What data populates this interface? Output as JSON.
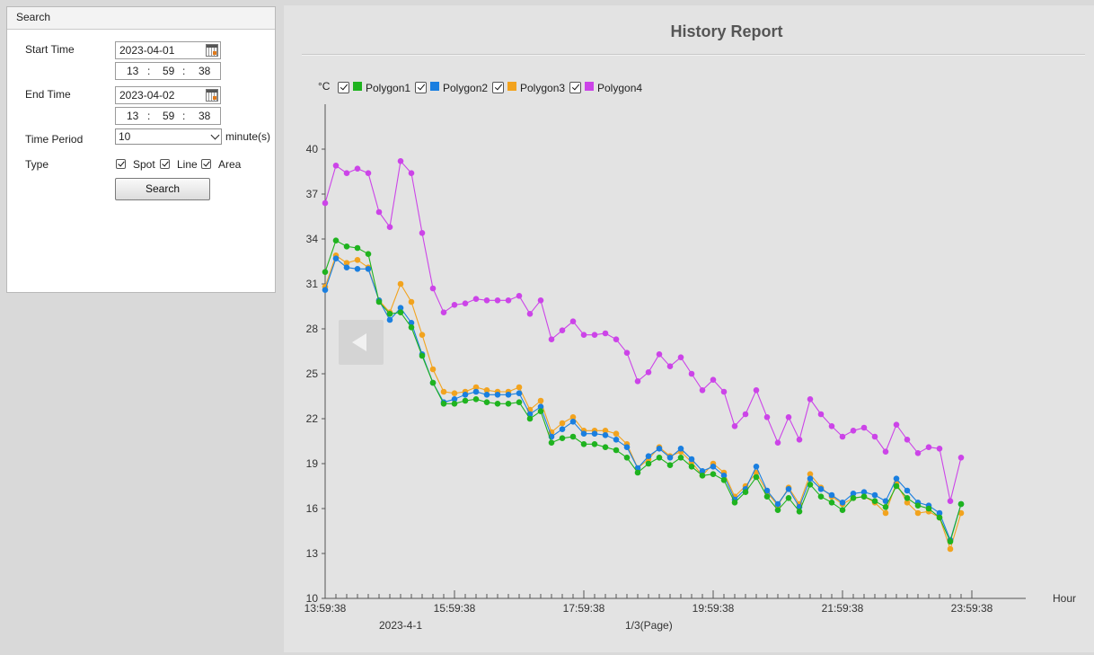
{
  "search": {
    "header": "Search",
    "start_time_label": "Start Time",
    "start_date": "2023-04-01",
    "start_hour": "13",
    "start_min": "59",
    "start_sec": "38",
    "end_time_label": "End Time",
    "end_date": "2023-04-02",
    "end_hour": "13",
    "end_min": "59",
    "end_sec": "38",
    "time_sep": ":",
    "period_label": "Time Period",
    "period_value": "10",
    "period_unit": "minute(s)",
    "type_label": "Type",
    "type_options": [
      "Spot",
      "Line",
      "Area"
    ],
    "button_label": "Search"
  },
  "chart_data": {
    "type": "line",
    "title": "History Report",
    "ylabel": "°C",
    "xlabel": "Hour",
    "ylim": [
      10,
      43
    ],
    "yticks": [
      10,
      13,
      16,
      19,
      22,
      25,
      28,
      31,
      34,
      37,
      40
    ],
    "x_start_label": "13:59:38",
    "xtick_labels": [
      "13:59:38",
      "15:59:38",
      "17:59:38",
      "19:59:38",
      "21:59:38",
      "23:59:38"
    ],
    "date_label": "2023-4-1",
    "page_label": "1/3(Page)",
    "series": [
      {
        "name": "Polygon1",
        "color": "#1fb31f",
        "values": [
          31.8,
          33.9,
          33.5,
          33.4,
          33.0,
          29.8,
          29.0,
          29.1,
          28.1,
          26.2,
          24.4,
          23.0,
          23.0,
          23.2,
          23.3,
          23.1,
          23.0,
          23.0,
          23.1,
          22.0,
          22.5,
          20.4,
          20.7,
          20.8,
          20.3,
          20.3,
          20.1,
          19.9,
          19.4,
          18.4,
          19.0,
          19.4,
          18.9,
          19.4,
          18.8,
          18.2,
          18.3,
          17.9,
          16.4,
          17.1,
          18.1,
          16.8,
          15.9,
          16.7,
          15.8,
          17.6,
          16.8,
          16.4,
          15.9,
          16.7,
          16.8,
          16.5,
          16.1,
          17.5,
          16.7,
          16.2,
          16.0,
          15.4,
          13.8,
          16.3
        ]
      },
      {
        "name": "Polygon2",
        "color": "#1a7fe0",
        "values": [
          30.6,
          32.7,
          32.1,
          32.0,
          32.0,
          29.9,
          28.6,
          29.4,
          28.4,
          26.3,
          24.4,
          23.1,
          23.3,
          23.6,
          23.8,
          23.6,
          23.6,
          23.6,
          23.7,
          22.3,
          22.8,
          20.8,
          21.3,
          21.8,
          21.0,
          21.0,
          20.9,
          20.6,
          20.1,
          18.7,
          19.5,
          20.0,
          19.4,
          20.0,
          19.3,
          18.5,
          18.8,
          18.2,
          16.6,
          17.3,
          18.8,
          17.2,
          16.3,
          17.3,
          16.1,
          18.0,
          17.3,
          16.9,
          16.4,
          17.0,
          17.1,
          16.9,
          16.5,
          18.0,
          17.2,
          16.4,
          16.2,
          15.7,
          13.9,
          16.3
        ]
      },
      {
        "name": "Polygon3",
        "color": "#f2a31e",
        "values": [
          30.8,
          32.9,
          32.4,
          32.6,
          32.1,
          29.9,
          29.1,
          31.0,
          29.8,
          27.6,
          25.3,
          23.8,
          23.7,
          23.8,
          24.1,
          23.9,
          23.8,
          23.8,
          24.1,
          22.6,
          23.2,
          21.1,
          21.7,
          22.1,
          21.2,
          21.2,
          21.2,
          21.0,
          20.3,
          18.7,
          19.3,
          20.1,
          19.5,
          19.8,
          19.1,
          18.2,
          19.0,
          18.4,
          16.8,
          17.5,
          18.4,
          17.1,
          16.2,
          17.4,
          16.3,
          18.3,
          17.4,
          16.8,
          16.3,
          16.7,
          16.8,
          16.4,
          15.7,
          17.7,
          16.4,
          15.7,
          15.8,
          15.4,
          13.3,
          15.7
        ]
      },
      {
        "name": "Polygon4",
        "color": "#cc44e8",
        "values": [
          36.4,
          38.9,
          38.4,
          38.7,
          38.4,
          35.8,
          34.8,
          39.2,
          38.4,
          34.4,
          30.7,
          29.1,
          29.6,
          29.7,
          30.0,
          29.9,
          29.9,
          29.9,
          30.2,
          29.0,
          29.9,
          27.3,
          27.9,
          28.5,
          27.6,
          27.6,
          27.7,
          27.3,
          26.4,
          24.5,
          25.1,
          26.3,
          25.5,
          26.1,
          25.0,
          23.9,
          24.6,
          23.8,
          21.5,
          22.3,
          23.9,
          22.1,
          20.4,
          22.1,
          20.6,
          23.3,
          22.3,
          21.5,
          20.8,
          21.2,
          21.4,
          20.8,
          19.8,
          21.6,
          20.6,
          19.7,
          20.1,
          20.0,
          16.5,
          19.4
        ]
      }
    ]
  }
}
